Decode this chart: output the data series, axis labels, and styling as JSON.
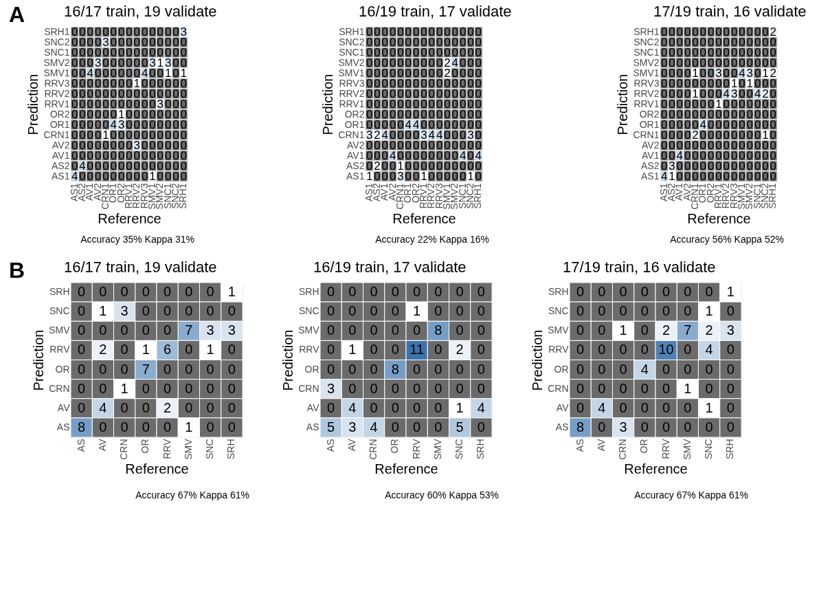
{
  "chart_data": [
    {
      "type": "heatmap",
      "title": "16/17 train, 19 validate",
      "xlabel": "Reference",
      "ylabel": "Prediction",
      "annotations": [
        "A",
        "Accuracy 35% Kappa 31%"
      ],
      "data_labels": true,
      "colors": [
        "#6b6b6b",
        "#ffffff",
        "#3a74ad"
      ],
      "categories": [
        "AS1",
        "AS2",
        "AV1",
        "AV2",
        "CRN1",
        "OR1",
        "OR2",
        "RRV1",
        "RRV2",
        "RRV3",
        "SMV1",
        "SMV2",
        "SNC1",
        "SNC2",
        "SRH1"
      ],
      "y_categories": [
        "SRH1",
        "SNC2",
        "SNC1",
        "SMV2",
        "SMV1",
        "RRV3",
        "RRV2",
        "RRV1",
        "OR2",
        "OR1",
        "CRN1",
        "AV2",
        "AV1",
        "AS2",
        "AS1"
      ],
      "cells": [
        [
          0,
          0,
          0,
          0,
          0,
          0,
          0,
          0,
          0,
          0,
          0,
          0,
          0,
          0,
          3
        ],
        [
          0,
          0,
          0,
          0,
          3,
          0,
          0,
          0,
          0,
          0,
          0,
          0,
          0,
          0,
          0
        ],
        [
          0,
          0,
          0,
          0,
          0,
          0,
          0,
          0,
          0,
          0,
          0,
          0,
          0,
          0,
          0
        ],
        [
          0,
          0,
          0,
          3,
          0,
          0,
          0,
          0,
          0,
          0,
          3,
          1,
          3,
          0,
          0
        ],
        [
          0,
          0,
          4,
          0,
          0,
          0,
          0,
          0,
          0,
          4,
          0,
          0,
          1,
          0,
          1
        ],
        [
          0,
          0,
          0,
          0,
          0,
          0,
          0,
          0,
          1,
          0,
          0,
          0,
          0,
          0,
          0
        ],
        [
          0,
          0,
          0,
          0,
          0,
          0,
          0,
          0,
          0,
          0,
          0,
          0,
          0,
          0,
          0
        ],
        [
          0,
          0,
          0,
          0,
          0,
          0,
          0,
          0,
          0,
          0,
          0,
          3,
          0,
          0,
          0
        ],
        [
          0,
          0,
          0,
          0,
          0,
          0,
          1,
          0,
          0,
          0,
          0,
          0,
          0,
          0,
          0
        ],
        [
          0,
          0,
          0,
          0,
          0,
          4,
          3,
          0,
          0,
          0,
          0,
          0,
          0,
          0,
          0
        ],
        [
          0,
          0,
          0,
          0,
          1,
          0,
          0,
          0,
          0,
          0,
          0,
          0,
          0,
          0,
          0
        ],
        [
          0,
          0,
          0,
          0,
          0,
          0,
          0,
          0,
          3,
          0,
          0,
          0,
          0,
          0,
          0
        ],
        [
          0,
          0,
          0,
          0,
          0,
          0,
          0,
          0,
          0,
          0,
          0,
          0,
          0,
          0,
          0
        ],
        [
          0,
          4,
          0,
          0,
          0,
          0,
          0,
          0,
          0,
          0,
          0,
          0,
          0,
          0,
          0
        ],
        [
          4,
          0,
          0,
          0,
          0,
          0,
          0,
          0,
          0,
          0,
          1,
          0,
          0,
          0,
          0
        ]
      ]
    },
    {
      "type": "heatmap",
      "title": "16/19 train, 17 validate",
      "xlabel": "Reference",
      "ylabel": "Prediction",
      "annotations": [
        "Accuracy 22% Kappa 16%"
      ],
      "data_labels": true,
      "colors": [
        "#6b6b6b",
        "#ffffff",
        "#3a74ad"
      ],
      "categories": [
        "AS1",
        "AS2",
        "AV1",
        "AV2",
        "CRN1",
        "OR1",
        "OR2",
        "RRV1",
        "RRV2",
        "RRV3",
        "SMV1",
        "SMV2",
        "SNC1",
        "SNC2",
        "SRH1"
      ],
      "y_categories": [
        "SRH1",
        "SNC2",
        "SNC1",
        "SMV2",
        "SMV1",
        "RRV3",
        "RRV2",
        "RRV1",
        "OR2",
        "OR1",
        "CRN1",
        "AV2",
        "AV1",
        "AS2",
        "AS1"
      ],
      "cells": [
        [
          0,
          0,
          0,
          0,
          0,
          0,
          0,
          0,
          0,
          0,
          0,
          0,
          0,
          0,
          0
        ],
        [
          0,
          0,
          0,
          0,
          0,
          0,
          0,
          0,
          0,
          0,
          0,
          0,
          0,
          0,
          0
        ],
        [
          0,
          0,
          0,
          0,
          0,
          0,
          0,
          0,
          0,
          0,
          0,
          0,
          0,
          0,
          0
        ],
        [
          0,
          0,
          0,
          0,
          0,
          0,
          0,
          0,
          0,
          0,
          2,
          4,
          0,
          0,
          0
        ],
        [
          0,
          0,
          0,
          0,
          0,
          0,
          0,
          0,
          0,
          0,
          2,
          0,
          0,
          0,
          0
        ],
        [
          0,
          0,
          0,
          0,
          0,
          0,
          0,
          0,
          0,
          0,
          0,
          0,
          0,
          0,
          0
        ],
        [
          0,
          0,
          0,
          0,
          0,
          0,
          0,
          0,
          0,
          0,
          0,
          0,
          0,
          0,
          0
        ],
        [
          0,
          0,
          0,
          0,
          0,
          0,
          0,
          0,
          0,
          0,
          0,
          0,
          0,
          0,
          0
        ],
        [
          0,
          0,
          0,
          0,
          0,
          0,
          0,
          0,
          0,
          0,
          0,
          0,
          0,
          0,
          0
        ],
        [
          0,
          0,
          0,
          0,
          0,
          4,
          4,
          0,
          0,
          0,
          0,
          0,
          0,
          0,
          0
        ],
        [
          3,
          2,
          4,
          0,
          0,
          0,
          0,
          3,
          4,
          4,
          0,
          0,
          0,
          3,
          0
        ],
        [
          0,
          0,
          0,
          0,
          0,
          0,
          0,
          0,
          0,
          0,
          0,
          0,
          0,
          0,
          0
        ],
        [
          0,
          0,
          0,
          4,
          0,
          0,
          0,
          0,
          0,
          0,
          0,
          0,
          4,
          0,
          4
        ],
        [
          0,
          2,
          0,
          0,
          1,
          0,
          0,
          0,
          0,
          0,
          0,
          0,
          0,
          0,
          0
        ],
        [
          1,
          0,
          0,
          0,
          3,
          0,
          0,
          1,
          0,
          0,
          0,
          0,
          0,
          1,
          0
        ]
      ]
    },
    {
      "type": "heatmap",
      "title": "17/19 train, 16 validate",
      "xlabel": "Reference",
      "ylabel": "Prediction",
      "annotations": [
        "Accuracy 56% Kappa 52%"
      ],
      "data_labels": true,
      "colors": [
        "#6b6b6b",
        "#ffffff",
        "#3a74ad"
      ],
      "categories": [
        "AS1",
        "AS2",
        "AV1",
        "AV2",
        "CRN1",
        "OR1",
        "OR2",
        "RRV1",
        "RRV2",
        "RRV3",
        "SMV1",
        "SMV2",
        "SNC1",
        "SNC2",
        "SRH1"
      ],
      "y_categories": [
        "SRH1",
        "SNC2",
        "SNC1",
        "SMV2",
        "SMV1",
        "RRV3",
        "RRV2",
        "RRV1",
        "OR2",
        "OR1",
        "CRN1",
        "AV2",
        "AV1",
        "AS2",
        "AS1"
      ],
      "cells": [
        [
          0,
          0,
          0,
          0,
          0,
          0,
          0,
          0,
          0,
          0,
          0,
          0,
          0,
          0,
          2
        ],
        [
          0,
          0,
          0,
          0,
          0,
          0,
          0,
          0,
          0,
          0,
          0,
          0,
          0,
          0,
          0
        ],
        [
          0,
          0,
          0,
          0,
          0,
          0,
          0,
          0,
          0,
          0,
          0,
          0,
          0,
          0,
          0
        ],
        [
          0,
          0,
          0,
          0,
          0,
          0,
          0,
          0,
          0,
          0,
          0,
          0,
          0,
          0,
          0
        ],
        [
          0,
          0,
          0,
          0,
          1,
          0,
          0,
          3,
          0,
          0,
          4,
          3,
          0,
          1,
          2
        ],
        [
          0,
          0,
          0,
          0,
          0,
          0,
          0,
          0,
          0,
          1,
          0,
          1,
          0,
          0,
          0
        ],
        [
          0,
          0,
          0,
          0,
          1,
          0,
          0,
          0,
          4,
          3,
          0,
          0,
          4,
          2,
          0
        ],
        [
          0,
          0,
          0,
          0,
          0,
          0,
          0,
          1,
          0,
          0,
          0,
          0,
          0,
          0,
          0
        ],
        [
          0,
          0,
          0,
          0,
          0,
          0,
          0,
          0,
          0,
          0,
          0,
          0,
          0,
          0,
          0
        ],
        [
          0,
          0,
          0,
          0,
          0,
          4,
          0,
          0,
          0,
          0,
          0,
          0,
          0,
          0,
          0
        ],
        [
          0,
          0,
          0,
          0,
          2,
          0,
          0,
          0,
          0,
          0,
          0,
          0,
          0,
          1,
          0
        ],
        [
          0,
          0,
          0,
          0,
          0,
          0,
          0,
          0,
          0,
          0,
          0,
          0,
          0,
          0,
          0
        ],
        [
          0,
          0,
          4,
          0,
          0,
          0,
          0,
          0,
          0,
          0,
          0,
          0,
          0,
          0,
          0
        ],
        [
          0,
          3,
          0,
          0,
          0,
          0,
          0,
          0,
          0,
          0,
          0,
          0,
          0,
          0,
          0
        ],
        [
          4,
          1,
          0,
          0,
          0,
          0,
          0,
          0,
          0,
          0,
          0,
          0,
          0,
          0,
          0
        ]
      ]
    },
    {
      "type": "heatmap",
      "title": "16/17 train, 19 validate",
      "xlabel": "Reference",
      "ylabel": "Prediction",
      "annotations": [
        "B",
        "Accuracy 67% Kappa 61%"
      ],
      "data_labels": true,
      "colors": [
        "#6b6b6b",
        "#ffffff",
        "#3a74ad"
      ],
      "categories": [
        "AS",
        "AV",
        "CRN",
        "OR",
        "RRV",
        "SMV",
        "SNC",
        "SRH"
      ],
      "y_categories": [
        "SRH",
        "SNC",
        "SMV",
        "RRV",
        "OR",
        "CRN",
        "AV",
        "AS"
      ],
      "cells": [
        [
          0,
          0,
          0,
          0,
          0,
          0,
          0,
          1
        ],
        [
          0,
          1,
          3,
          0,
          0,
          0,
          0,
          0
        ],
        [
          0,
          0,
          0,
          0,
          0,
          7,
          3,
          3
        ],
        [
          0,
          2,
          0,
          1,
          6,
          0,
          1,
          0
        ],
        [
          0,
          0,
          0,
          7,
          0,
          0,
          0,
          0
        ],
        [
          0,
          0,
          1,
          0,
          0,
          0,
          0,
          0
        ],
        [
          0,
          4,
          0,
          0,
          2,
          0,
          0,
          0
        ],
        [
          8,
          0,
          0,
          0,
          0,
          1,
          0,
          0
        ]
      ]
    },
    {
      "type": "heatmap",
      "title": "16/19 train, 17 validate",
      "xlabel": "Reference",
      "ylabel": "Prediction",
      "annotations": [
        "Accuracy 60% Kappa 53%"
      ],
      "data_labels": true,
      "colors": [
        "#6b6b6b",
        "#ffffff",
        "#3a74ad"
      ],
      "categories": [
        "AS",
        "AV",
        "CRN",
        "OR",
        "RRV",
        "SMV",
        "SNC",
        "SRH"
      ],
      "y_categories": [
        "SRH",
        "SNC",
        "SMV",
        "RRV",
        "OR",
        "CRN",
        "AV",
        "AS"
      ],
      "cells": [
        [
          0,
          0,
          0,
          0,
          0,
          0,
          0,
          0
        ],
        [
          0,
          0,
          0,
          0,
          1,
          0,
          0,
          0
        ],
        [
          0,
          0,
          0,
          0,
          0,
          8,
          0,
          0
        ],
        [
          0,
          1,
          0,
          0,
          11,
          0,
          2,
          0
        ],
        [
          0,
          0,
          0,
          8,
          0,
          0,
          0,
          0
        ],
        [
          3,
          0,
          0,
          0,
          0,
          0,
          0,
          0
        ],
        [
          0,
          4,
          0,
          0,
          0,
          0,
          1,
          4
        ],
        [
          5,
          3,
          4,
          0,
          0,
          0,
          5,
          0
        ]
      ]
    },
    {
      "type": "heatmap",
      "title": "17/19 train, 16 validate",
      "xlabel": "Reference",
      "ylabel": "Prediction",
      "annotations": [
        "Accuracy 67% Kappa 61%"
      ],
      "data_labels": true,
      "colors": [
        "#6b6b6b",
        "#ffffff",
        "#3a74ad"
      ],
      "categories": [
        "AS",
        "AV",
        "CRN",
        "OR",
        "RRV",
        "SMV",
        "SNC",
        "SRH"
      ],
      "y_categories": [
        "SRH",
        "SNC",
        "SMV",
        "RRV",
        "OR",
        "CRN",
        "AV",
        "AS"
      ],
      "cells": [
        [
          0,
          0,
          0,
          0,
          0,
          0,
          0,
          1
        ],
        [
          0,
          0,
          0,
          0,
          0,
          0,
          1,
          0
        ],
        [
          0,
          0,
          1,
          0,
          2,
          7,
          2,
          3
        ],
        [
          0,
          0,
          0,
          0,
          10,
          0,
          4,
          0
        ],
        [
          0,
          0,
          0,
          4,
          0,
          0,
          0,
          0
        ],
        [
          0,
          0,
          0,
          0,
          0,
          1,
          0,
          0
        ],
        [
          0,
          4,
          0,
          0,
          0,
          0,
          1,
          0
        ],
        [
          8,
          0,
          3,
          0,
          0,
          0,
          0,
          0
        ]
      ]
    }
  ]
}
